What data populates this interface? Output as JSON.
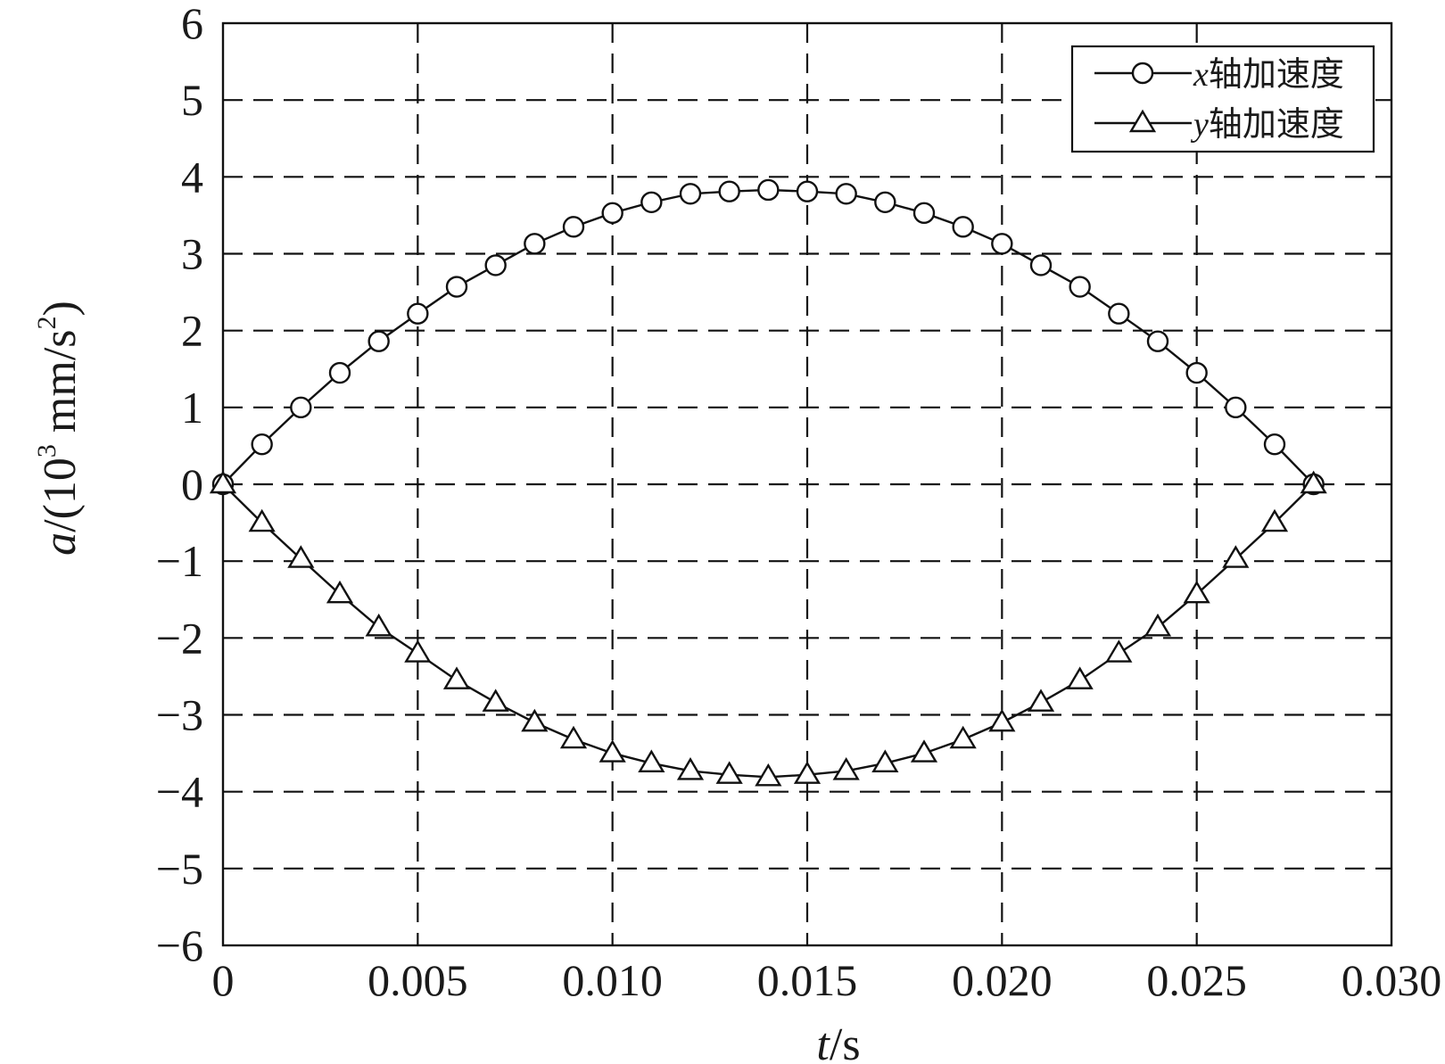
{
  "chart_data": {
    "type": "line",
    "xlabel_italic": "t",
    "xlabel_unit": "/s",
    "ylabel_italic": "a",
    "ylabel_unit_pre": "/(10",
    "ylabel_unit_sup": "3",
    "ylabel_unit_mid": " mm/s",
    "ylabel_unit_sup2": "2",
    "ylabel_unit_post": ")",
    "xlim": [
      0,
      0.03
    ],
    "ylim": [
      -6,
      6
    ],
    "grid": true,
    "legend_position": "top-right",
    "x_ticks": [
      0,
      0.005,
      0.01,
      0.015,
      0.02,
      0.025,
      0.03
    ],
    "x_tick_labels": [
      "0",
      "0.005",
      "0.010",
      "0.015",
      "0.020",
      "0.025",
      "0.030"
    ],
    "y_ticks": [
      6,
      5,
      4,
      3,
      2,
      1,
      0,
      -1,
      -2,
      -3,
      -4,
      -5,
      -6
    ],
    "y_tick_labels": [
      "6",
      "5",
      "4",
      "3",
      "2",
      "1",
      "0",
      "−1",
      "−2",
      "−3",
      "−4",
      "−5",
      "−6"
    ],
    "x": [
      0,
      0.001,
      0.002,
      0.003,
      0.004,
      0.005,
      0.006,
      0.007,
      0.008,
      0.009,
      0.01,
      0.011,
      0.012,
      0.013,
      0.014,
      0.015,
      0.016,
      0.017,
      0.018,
      0.019,
      0.02,
      0.021,
      0.022,
      0.023,
      0.024,
      0.025,
      0.026,
      0.027,
      0.028
    ],
    "series": [
      {
        "name_italic": "x",
        "name_rest": "轴加速度",
        "marker": "circle",
        "values": [
          0,
          0.52,
          1.0,
          1.45,
          1.86,
          2.22,
          2.57,
          2.85,
          3.13,
          3.35,
          3.53,
          3.67,
          3.78,
          3.81,
          3.83,
          3.81,
          3.78,
          3.67,
          3.53,
          3.35,
          3.13,
          2.85,
          2.57,
          2.22,
          1.86,
          1.45,
          1.0,
          0.52,
          0
        ]
      },
      {
        "name_italic": "y",
        "name_rest": "轴加速度",
        "marker": "triangle",
        "values": [
          0,
          -0.5,
          -0.97,
          -1.43,
          -1.86,
          -2.2,
          -2.55,
          -2.84,
          -3.1,
          -3.32,
          -3.5,
          -3.63,
          -3.73,
          -3.78,
          -3.81,
          -3.78,
          -3.73,
          -3.63,
          -3.5,
          -3.32,
          -3.1,
          -2.84,
          -2.55,
          -2.2,
          -1.86,
          -1.43,
          -0.97,
          -0.5,
          0
        ]
      }
    ]
  }
}
